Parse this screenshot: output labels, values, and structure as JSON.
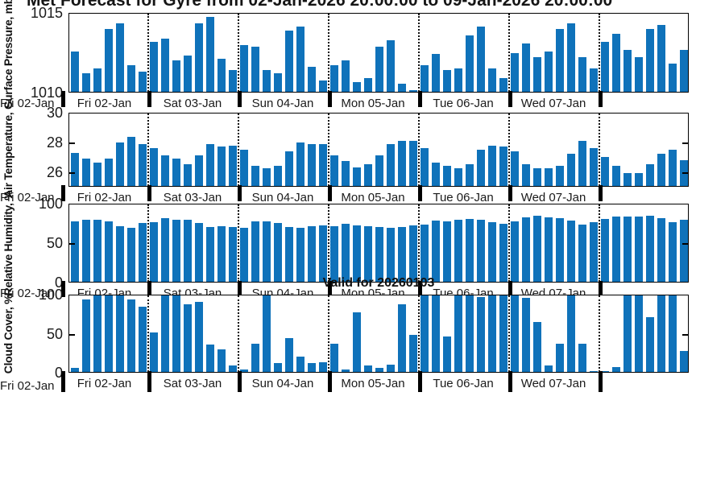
{
  "figure": {
    "title": "Met Forecast for Gyre from 02-Jan-2026 20:00:00 to 09-Jan-2026 20:00:00",
    "annotation": "Valid for 20260103",
    "background": "#ffffff"
  },
  "chart_data": {
    "type": "bar",
    "bar_color": "#0f72ba",
    "axis_color": "#000000",
    "x_categories": [
      "Fri 02-Jan",
      "Sat 03-Jan",
      "Sun 04-Jan",
      "Mon 05-Jan",
      "Tue 06-Jan",
      "Wed 07-Jan"
    ],
    "edge_tick_label": "Fri 02-Jan",
    "bars_per_day": [
      7,
      8,
      8,
      8,
      8,
      8,
      8
    ],
    "x_axis_note": "7 day segments separated by bold ticks and dotted gridlines; last segment unlabeled",
    "panels": [
      {
        "id": "surface-pressure",
        "ylabel": "Surface Pressure, mb",
        "ylim": [
          1010,
          1015
        ],
        "yticks": [
          1010,
          1015
        ],
        "values": [
          1012.6,
          1011.2,
          1011.5,
          1014.0,
          1014.4,
          1011.7,
          1011.3,
          1013.2,
          1013.4,
          1012.0,
          1012.3,
          1014.4,
          1014.8,
          1012.1,
          1011.4,
          1013.0,
          1012.9,
          1011.4,
          1011.2,
          1013.9,
          1014.2,
          1011.6,
          1010.7,
          1011.7,
          1012.0,
          1010.6,
          1010.9,
          1012.9,
          1013.3,
          1010.5,
          1010.1,
          1011.7,
          1012.4,
          1011.4,
          1011.5,
          1013.6,
          1014.2,
          1011.5,
          1010.9,
          1012.5,
          1013.1,
          1012.2,
          1012.6,
          1014.0,
          1014.4,
          1012.2,
          1011.5,
          1013.2,
          1013.7,
          1012.7,
          1012.2,
          1014.0,
          1014.3,
          1011.8,
          1012.7
        ]
      },
      {
        "id": "air-temperature",
        "ylabel": "Air Temperature, C",
        "ylim": [
          25,
          30
        ],
        "yticks": [
          26,
          28,
          30
        ],
        "values": [
          27.3,
          26.9,
          26.6,
          26.9,
          28.0,
          28.4,
          27.9,
          27.6,
          27.1,
          26.9,
          26.5,
          27.1,
          27.9,
          27.7,
          27.8,
          27.5,
          26.4,
          26.2,
          26.4,
          27.4,
          28.0,
          27.9,
          27.9,
          27.1,
          26.7,
          26.3,
          26.5,
          27.1,
          27.9,
          28.1,
          28.1,
          27.6,
          26.6,
          26.4,
          26.2,
          26.5,
          27.5,
          27.8,
          27.7,
          27.4,
          26.5,
          26.2,
          26.2,
          26.4,
          27.2,
          28.1,
          27.6,
          27.0,
          26.4,
          25.9,
          25.9,
          26.5,
          27.2,
          27.5,
          26.8
        ]
      },
      {
        "id": "relative-humidity",
        "ylabel": "Relative Humidity, %",
        "ylim": [
          0,
          100
        ],
        "yticks": [
          0,
          50,
          100
        ],
        "values": [
          78,
          80,
          80,
          78,
          72,
          70,
          76,
          77,
          82,
          80,
          80,
          76,
          71,
          72,
          71,
          70,
          78,
          78,
          76,
          71,
          70,
          72,
          73,
          72,
          75,
          73,
          72,
          71,
          70,
          71,
          73,
          74,
          79,
          78,
          80,
          81,
          80,
          77,
          75,
          78,
          83,
          85,
          83,
          82,
          79,
          74,
          77,
          81,
          84,
          84,
          84,
          85,
          82,
          77,
          80
        ]
      },
      {
        "id": "cloud-cover",
        "ylabel": "Cloud Cover, %",
        "ylim": [
          0,
          100
        ],
        "yticks": [
          0,
          50,
          100
        ],
        "values": [
          5,
          95,
          100,
          100,
          100,
          95,
          85,
          52,
          100,
          100,
          88,
          92,
          36,
          30,
          8,
          3,
          37,
          100,
          12,
          44,
          20,
          12,
          13,
          37,
          3,
          78,
          8,
          5,
          10,
          88,
          48,
          100,
          100,
          46,
          100,
          100,
          98,
          100,
          100,
          100,
          97,
          65,
          8,
          37,
          100,
          37,
          1,
          1,
          6,
          100,
          100,
          72,
          100,
          100,
          27
        ]
      }
    ]
  }
}
